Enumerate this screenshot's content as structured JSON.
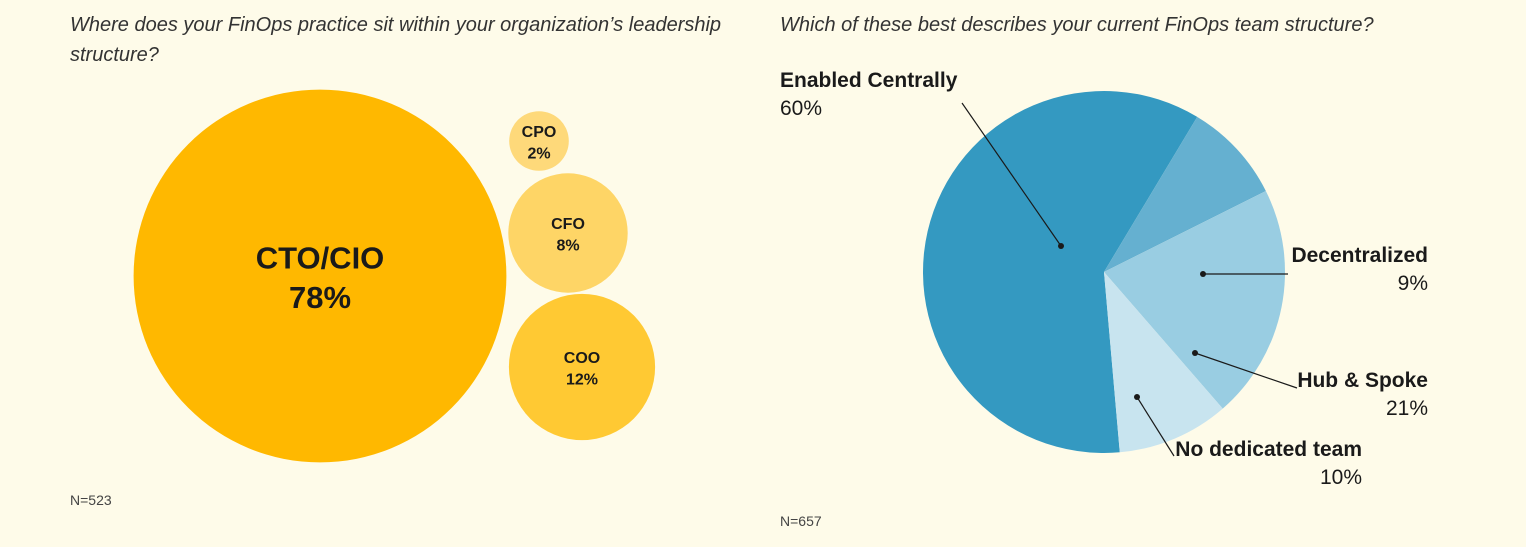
{
  "chart_data": [
    {
      "type": "bubble",
      "title": "Where does your FinOps practice sit within your organization’s leadership structure?",
      "note": "N=523",
      "items": [
        {
          "label": "CTO/CIO",
          "value": 78,
          "value_label": "78%",
          "color": "#ffb800"
        },
        {
          "label": "CPO",
          "value": 2,
          "value_label": "2%",
          "color": "#fed97a"
        },
        {
          "label": "CFO",
          "value": 8,
          "value_label": "8%",
          "color": "#fed566"
        },
        {
          "label": "COO",
          "value": 12,
          "value_label": "12%",
          "color": "#ffc933"
        }
      ]
    },
    {
      "type": "pie",
      "title": "Which of these best describes your current FinOps team structure?",
      "note": "N=657",
      "slices": [
        {
          "label": "Enabled Centrally",
          "value": 60,
          "value_label": "60%",
          "color": "#3499c1"
        },
        {
          "label": "Decentralized",
          "value": 9,
          "value_label": "9%",
          "color": "#65b0d0"
        },
        {
          "label": "Hub & Spoke",
          "value": 21,
          "value_label": "21%",
          "color": "#99cde2"
        },
        {
          "label": "No dedicated team",
          "value": 10,
          "value_label": "10%",
          "color": "#c8e4ef"
        }
      ]
    }
  ]
}
